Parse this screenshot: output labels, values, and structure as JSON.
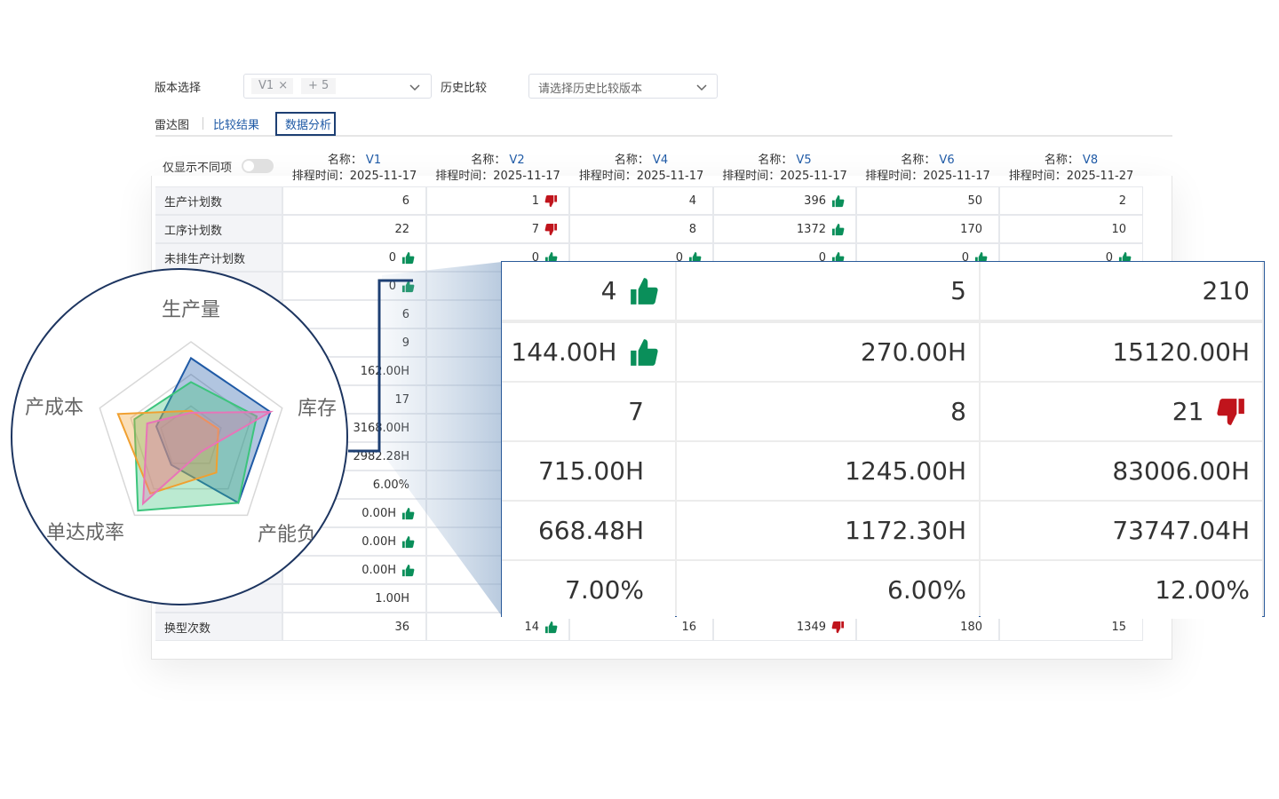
{
  "filters": {
    "version_label": "版本选择",
    "version_tags": [
      "V1",
      "+ 5"
    ],
    "history_label": "历史比较",
    "history_placeholder": "请选择历史比较版本"
  },
  "tabs": [
    "雷达图",
    "比较结果",
    "数据分析"
  ],
  "active_tab": 2,
  "toggle_label": "仅显示不同项",
  "table": {
    "name_label": "名称：",
    "time_label": "排程时间：",
    "columns": [
      {
        "name": "V1",
        "time": "2025-11-17"
      },
      {
        "name": "V2",
        "time": "2025-11-17"
      },
      {
        "name": "V4",
        "time": "2025-11-17"
      },
      {
        "name": "V5",
        "time": "2025-11-17"
      },
      {
        "name": "V6",
        "time": "2025-11-17"
      },
      {
        "name": "V8",
        "time": "2025-11-27"
      }
    ],
    "rows": [
      {
        "label": "生产计划数",
        "cells": [
          "6",
          {
            "text": "1",
            "icon": "down"
          },
          "4",
          {
            "text": "396",
            "icon": "up"
          },
          "50",
          "2"
        ]
      },
      {
        "label": "工序计划数",
        "cells": [
          "22",
          {
            "text": "7",
            "icon": "down"
          },
          "8",
          {
            "text": "1372",
            "icon": "up"
          },
          "170",
          "10"
        ]
      },
      {
        "label": "未排生产计划数",
        "cells": [
          {
            "text": "0",
            "icon": "up"
          },
          {
            "text": "0",
            "icon": "up"
          },
          {
            "text": "0",
            "icon": "up"
          },
          {
            "text": "0",
            "icon": "up"
          },
          {
            "text": "0",
            "icon": "up"
          },
          {
            "text": "0",
            "icon": "up"
          }
        ]
      },
      {
        "label": null,
        "cells": [
          {
            "text": "0",
            "icon": "up"
          },
          null,
          null,
          null,
          null,
          null
        ]
      },
      {
        "label": null,
        "cells": [
          "6",
          null,
          null,
          null,
          null,
          null
        ]
      },
      {
        "label": null,
        "cells": [
          "9",
          null,
          null,
          null,
          null,
          null
        ]
      },
      {
        "label": null,
        "cells": [
          "162.00H",
          null,
          null,
          null,
          null,
          null
        ]
      },
      {
        "label": null,
        "cells": [
          "17",
          null,
          null,
          null,
          null,
          null
        ]
      },
      {
        "label": null,
        "cells": [
          "3168.00H",
          null,
          null,
          null,
          null,
          null
        ]
      },
      {
        "label": null,
        "cells": [
          "2982.28H",
          null,
          null,
          null,
          null,
          null
        ]
      },
      {
        "label": null,
        "cells": [
          "6.00%",
          null,
          null,
          null,
          null,
          null
        ]
      },
      {
        "label": null,
        "cells": [
          {
            "text": "0.00H",
            "icon": "up"
          },
          null,
          null,
          null,
          null,
          null
        ]
      },
      {
        "label": null,
        "cells": [
          {
            "text": "0.00H",
            "icon": "up"
          },
          null,
          null,
          null,
          null,
          null
        ]
      },
      {
        "label": null,
        "cells": [
          {
            "text": "0.00H",
            "icon": "up"
          },
          null,
          null,
          null,
          null,
          null
        ]
      },
      {
        "label": null,
        "cells": [
          "1.00H",
          null,
          null,
          null,
          null,
          null
        ]
      },
      {
        "label": "换型次数",
        "cells": [
          "36",
          {
            "text": "14",
            "icon": "up"
          },
          "16",
          {
            "text": "1349",
            "icon": "down"
          },
          "180",
          "15"
        ]
      }
    ]
  },
  "zoom": {
    "rows": [
      [
        {
          "text": "4",
          "icon": "up"
        },
        "5",
        "210"
      ],
      [
        {
          "text": "144.00H",
          "icon": "up"
        },
        "270.00H",
        "15120.00H"
      ],
      [
        "7",
        "8",
        {
          "text": "21",
          "icon": "down"
        }
      ],
      [
        "715.00H",
        "1245.00H",
        "83006.00H"
      ],
      [
        "668.48H",
        "1172.30H",
        "73747.04H"
      ],
      [
        "7.00%",
        "6.00%",
        "12.00%"
      ]
    ]
  },
  "radar": {
    "axes": [
      "生产量",
      "库存",
      "产能负",
      "单达成率",
      "产成本"
    ],
    "series": [
      {
        "color": "#1f5aa6",
        "values": [
          0.83,
          0.87,
          0.84,
          0.35,
          0.38
        ]
      },
      {
        "color": "#3cc47c",
        "values": [
          0.58,
          0.72,
          0.84,
          0.94,
          0.62
        ]
      },
      {
        "color": "#f0a030",
        "values": [
          0.28,
          0.3,
          0.45,
          0.72,
          0.8
        ]
      },
      {
        "color": "#e874b8",
        "values": [
          0.26,
          0.87,
          0.18,
          0.85,
          0.48
        ]
      }
    ]
  }
}
